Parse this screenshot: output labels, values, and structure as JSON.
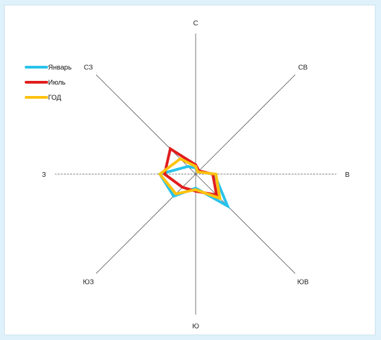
{
  "chart_data": {
    "type": "radar",
    "title": "",
    "directions": [
      "С",
      "СВ",
      "В",
      "ЮВ",
      "Ю",
      "ЮЗ",
      "З",
      "СЗ"
    ],
    "legend_position": "top-left",
    "series": [
      {
        "name": "Январь",
        "color": "#29c3ea",
        "values": [
          4,
          2,
          12,
          29,
          9,
          20,
          23,
          7
        ]
      },
      {
        "name": "Июль",
        "color": "#e11d1d",
        "values": [
          6,
          3,
          11,
          19,
          11,
          12,
          20,
          23
        ]
      },
      {
        "name": "ГОД",
        "color": "#ffc20e",
        "values": [
          5,
          2,
          13,
          22,
          10,
          18,
          23,
          14
        ]
      }
    ]
  }
}
